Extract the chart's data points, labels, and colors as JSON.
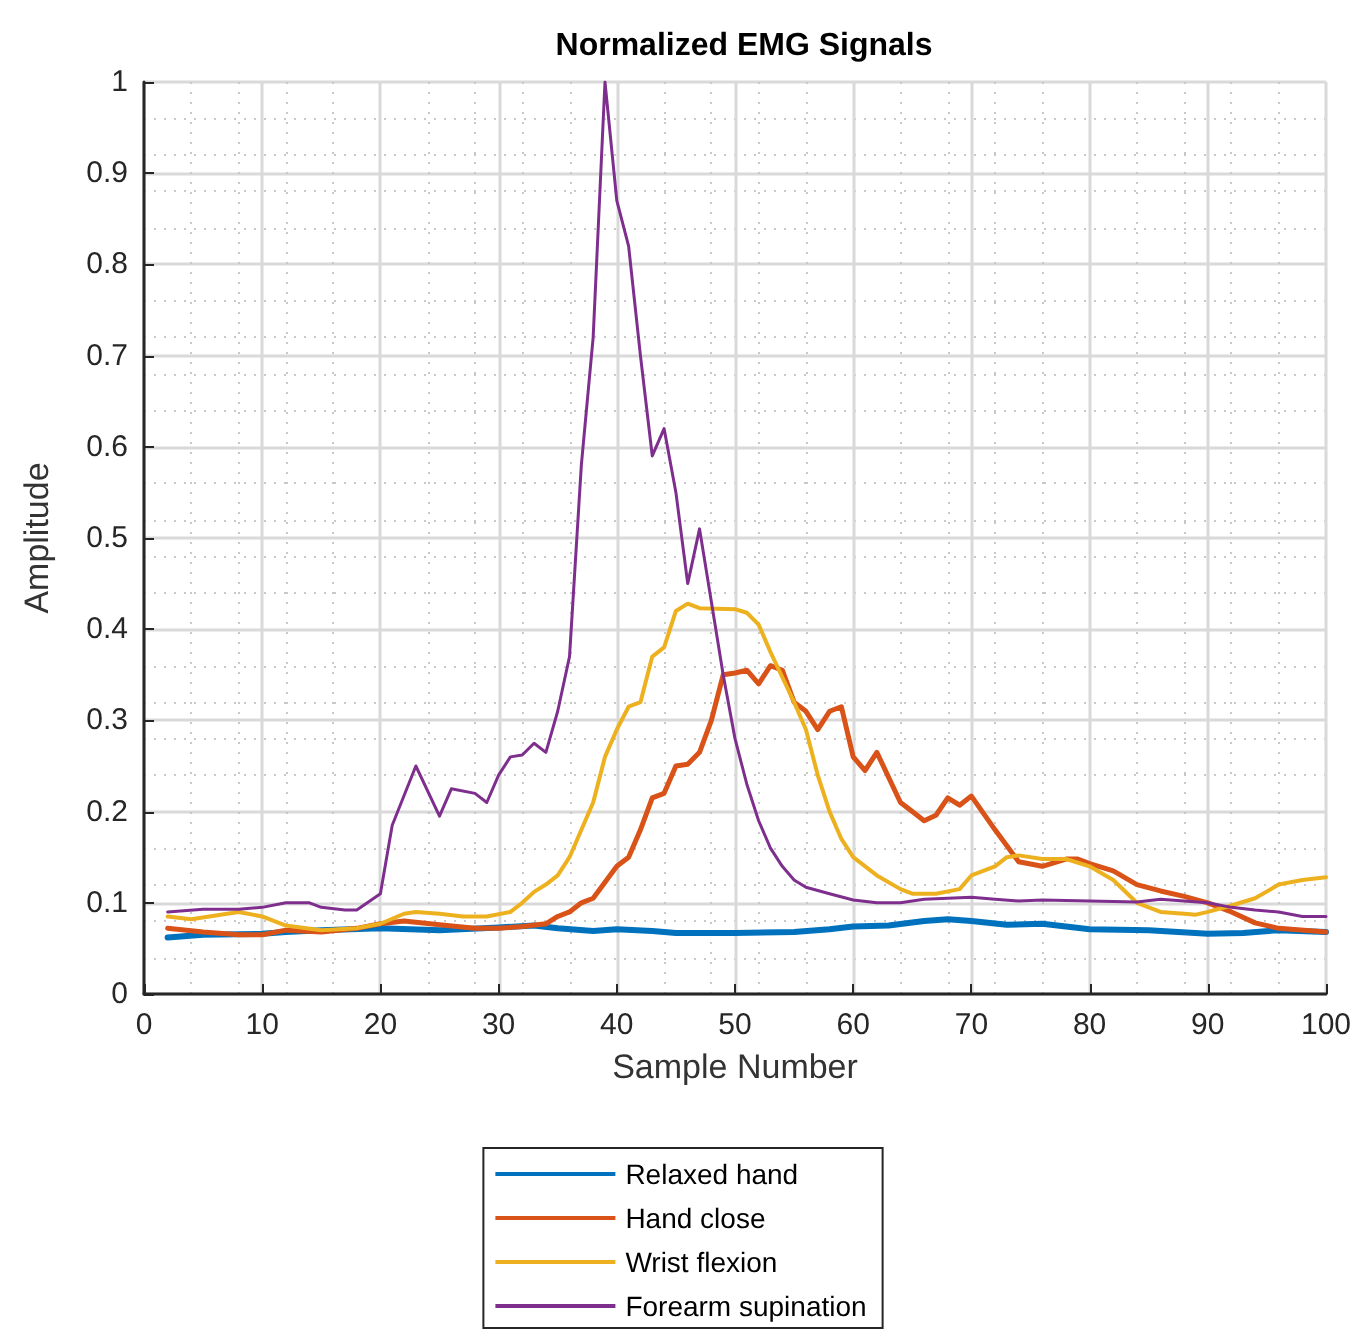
{
  "chart_data": {
    "type": "line",
    "title": "Normalized EMG Signals",
    "xlabel": "Sample Number",
    "ylabel": "Amplitude",
    "xlim": [
      0,
      100
    ],
    "xticks": [
      0,
      10,
      20,
      30,
      40,
      50,
      60,
      70,
      80,
      90,
      100
    ],
    "ylim": [
      0,
      1
    ],
    "yticks": [
      0,
      0.1,
      0.2,
      0.3,
      0.4,
      0.5,
      0.6,
      0.7,
      0.8,
      0.9,
      1
    ],
    "grid": true,
    "legend": "bottom",
    "marker": "none",
    "line_style": "solid",
    "series": [
      {
        "name": "Relaxed hand",
        "color": "#0072bd",
        "x": [
          2,
          5,
          10,
          12,
          15,
          20,
          25,
          30,
          33,
          35,
          38,
          40,
          43,
          45,
          50,
          55,
          58,
          60,
          63,
          66,
          68,
          70,
          73,
          76,
          80,
          85,
          90,
          93,
          96,
          100
        ],
        "values": [
          0.062,
          0.065,
          0.066,
          0.068,
          0.07,
          0.072,
          0.07,
          0.073,
          0.075,
          0.072,
          0.069,
          0.071,
          0.069,
          0.067,
          0.067,
          0.068,
          0.071,
          0.074,
          0.075,
          0.08,
          0.082,
          0.08,
          0.076,
          0.077,
          0.071,
          0.07,
          0.066,
          0.067,
          0.07,
          0.068
        ]
      },
      {
        "name": "Hand close",
        "color": "#d95319",
        "x": [
          2,
          5,
          8,
          10,
          12,
          15,
          18,
          20,
          22,
          25,
          28,
          30,
          32,
          34,
          35,
          36,
          37,
          38,
          40,
          41,
          42,
          43,
          44,
          45,
          46,
          47,
          48,
          49,
          50,
          51,
          52,
          53,
          54,
          55,
          56,
          57,
          58,
          59,
          60,
          61,
          62,
          64,
          65,
          66,
          67,
          68,
          69,
          70,
          72,
          74,
          76,
          78,
          79,
          80,
          82,
          84,
          86,
          88,
          90,
          92,
          94,
          96,
          100
        ],
        "values": [
          0.072,
          0.068,
          0.065,
          0.065,
          0.07,
          0.068,
          0.072,
          0.077,
          0.08,
          0.076,
          0.072,
          0.072,
          0.074,
          0.077,
          0.085,
          0.09,
          0.1,
          0.105,
          0.14,
          0.15,
          0.18,
          0.215,
          0.22,
          0.25,
          0.252,
          0.265,
          0.3,
          0.35,
          0.352,
          0.355,
          0.34,
          0.36,
          0.355,
          0.32,
          0.31,
          0.29,
          0.31,
          0.315,
          0.26,
          0.245,
          0.265,
          0.21,
          0.2,
          0.19,
          0.196,
          0.215,
          0.207,
          0.217,
          0.18,
          0.145,
          0.14,
          0.148,
          0.148,
          0.143,
          0.135,
          0.12,
          0.113,
          0.107,
          0.1,
          0.09,
          0.078,
          0.072,
          0.068
        ]
      },
      {
        "name": "Wrist flexion",
        "color": "#edb120",
        "x": [
          2,
          4,
          8,
          10,
          12,
          15,
          18,
          20,
          22,
          23,
          25,
          27,
          29,
          31,
          32,
          33,
          34,
          35,
          36,
          38,
          39,
          40,
          41,
          42,
          43,
          44,
          45,
          46,
          47,
          50,
          51,
          52,
          53,
          55,
          56,
          57,
          58,
          59,
          60,
          62,
          64,
          65,
          67,
          69,
          70,
          72,
          73,
          74,
          76,
          78,
          80,
          82,
          84,
          86,
          88,
          89,
          90,
          92,
          94,
          96,
          98,
          100
        ],
        "values": [
          0.085,
          0.082,
          0.09,
          0.085,
          0.075,
          0.07,
          0.072,
          0.077,
          0.088,
          0.09,
          0.088,
          0.085,
          0.085,
          0.09,
          0.1,
          0.112,
          0.12,
          0.13,
          0.15,
          0.21,
          0.26,
          0.29,
          0.315,
          0.32,
          0.37,
          0.38,
          0.42,
          0.428,
          0.423,
          0.422,
          0.418,
          0.405,
          0.375,
          0.32,
          0.29,
          0.24,
          0.2,
          0.17,
          0.15,
          0.13,
          0.115,
          0.11,
          0.11,
          0.115,
          0.13,
          0.14,
          0.15,
          0.152,
          0.148,
          0.148,
          0.14,
          0.125,
          0.1,
          0.09,
          0.088,
          0.087,
          0.09,
          0.097,
          0.105,
          0.12,
          0.125,
          0.128
        ]
      },
      {
        "name": "Forearm supination",
        "color": "#7e2f8e",
        "x": [
          2,
          5,
          8,
          10,
          12,
          14,
          15,
          17,
          18,
          20,
          21,
          23,
          25,
          26,
          28,
          29,
          30,
          31,
          32,
          33,
          34,
          35,
          36,
          37,
          38,
          39,
          40,
          41,
          42,
          43,
          44,
          45,
          46,
          47,
          48,
          49,
          50,
          51,
          52,
          53,
          54,
          55,
          56,
          58,
          60,
          62,
          64,
          66,
          68,
          70,
          72,
          74,
          76,
          80,
          84,
          86,
          90,
          92,
          94,
          96,
          98,
          100
        ],
        "values": [
          0.09,
          0.093,
          0.093,
          0.095,
          0.1,
          0.1,
          0.095,
          0.092,
          0.092,
          0.11,
          0.185,
          0.25,
          0.195,
          0.225,
          0.22,
          0.21,
          0.24,
          0.26,
          0.262,
          0.275,
          0.265,
          0.31,
          0.37,
          0.58,
          0.72,
          1.0,
          0.87,
          0.82,
          0.7,
          0.59,
          0.62,
          0.55,
          0.45,
          0.51,
          0.43,
          0.35,
          0.28,
          0.23,
          0.19,
          0.16,
          0.14,
          0.125,
          0.117,
          0.11,
          0.103,
          0.1,
          0.1,
          0.104,
          0.105,
          0.106,
          0.104,
          0.102,
          0.103,
          0.102,
          0.101,
          0.104,
          0.1,
          0.095,
          0.092,
          0.09,
          0.085,
          0.085
        ]
      }
    ]
  }
}
